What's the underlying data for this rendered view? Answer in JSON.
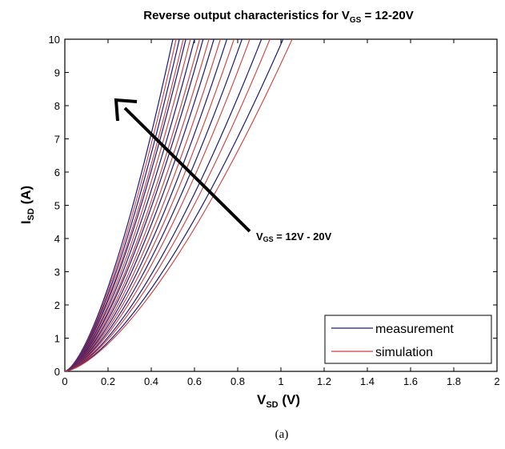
{
  "chart_data": {
    "type": "line",
    "title": {
      "prefix": "Reverse output characteristics for V",
      "sub": "GS",
      "suffix": " = 12-20V"
    },
    "xlabel": {
      "main": "V",
      "sub": "SD",
      "unit": " (V)"
    },
    "ylabel": {
      "main": "I",
      "sub": "SD",
      "unit": " (A)"
    },
    "xlim": [
      0,
      2
    ],
    "ylim": [
      0,
      10
    ],
    "xticks": [
      0,
      0.2,
      0.4,
      0.6,
      0.8,
      1,
      1.2,
      1.4,
      1.6,
      1.8,
      2
    ],
    "yticks": [
      0,
      1,
      2,
      3,
      4,
      5,
      6,
      7,
      8,
      9,
      10
    ],
    "xtick_labels": [
      "0",
      "0.2",
      "0.4",
      "0.6",
      "0.8",
      "1",
      "1.2",
      "1.4",
      "1.6",
      "1.8",
      "2"
    ],
    "ytick_labels": [
      "0",
      "1",
      "2",
      "3",
      "4",
      "5",
      "6",
      "7",
      "8",
      "9",
      "10"
    ],
    "annotation": {
      "prefix": "V",
      "sub": "GS",
      "suffix": " = 12V - 20V"
    },
    "legend": {
      "position": "bottom-right",
      "entries": [
        {
          "label": "measurement",
          "color": "#1a1a7a"
        },
        {
          "label": "simulation",
          "color": "#d23c3c"
        }
      ]
    },
    "curve_family": [
      {
        "vsd_at_10A": 0.5
      },
      {
        "vsd_at_10A": 0.53
      },
      {
        "vsd_at_10A": 0.56
      },
      {
        "vsd_at_10A": 0.6
      },
      {
        "vsd_at_10A": 0.64
      },
      {
        "vsd_at_10A": 0.69
      },
      {
        "vsd_at_10A": 0.75
      },
      {
        "vsd_at_10A": 0.82
      },
      {
        "vsd_at_10A": 0.91
      },
      {
        "vsd_at_10A": 1.01
      }
    ],
    "simulation_offset_v": 0.015
  },
  "caption": "(a)",
  "colors": {
    "measurement": "#1a1a7a",
    "simulation": "#d23c3c",
    "axis": "#000000"
  }
}
